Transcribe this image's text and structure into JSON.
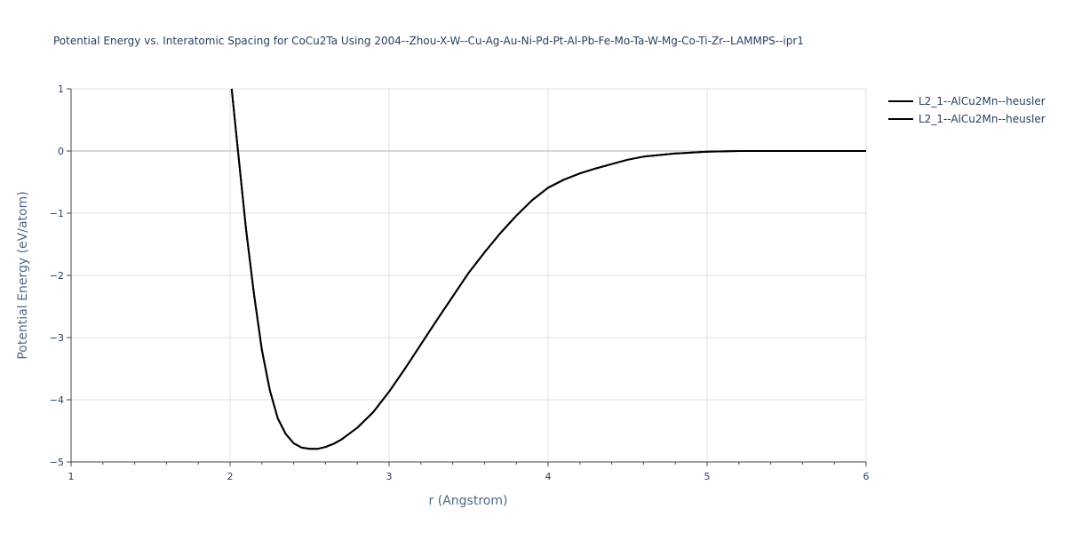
{
  "chart_data": {
    "type": "line",
    "title": "Potential Energy vs. Interatomic Spacing for CoCu2Ta Using 2004--Zhou-X-W--Cu-Ag-Au-Ni-Pd-Pt-Al-Pb-Fe-Mo-Ta-W-Mg-Co-Ti-Zr--LAMMPS--ipr1",
    "xlabel": "r (Angstrom)",
    "ylabel": "Potential Energy (eV/atom)",
    "xlim": [
      1,
      6
    ],
    "ylim": [
      -5,
      1
    ],
    "x_ticks": [
      1,
      2,
      3,
      4,
      5,
      6
    ],
    "y_ticks": [
      1,
      0,
      -1,
      -2,
      -3,
      -4,
      -5
    ],
    "x_tick_labels": [
      "1",
      "2",
      "3",
      "4",
      "5",
      "6"
    ],
    "y_tick_labels": [
      "1",
      "0",
      "−1",
      "−2",
      "−3",
      "−4",
      "−5"
    ],
    "grid": true,
    "legend_position": "top-right",
    "series": [
      {
        "name": "L2_1--AlCu2Mn--heusler",
        "color": "#000000",
        "x": [
          2.01,
          2.05,
          2.1,
          2.15,
          2.2,
          2.25,
          2.3,
          2.35,
          2.4,
          2.45,
          2.5,
          2.55,
          2.6,
          2.65,
          2.7,
          2.8,
          2.9,
          3.0,
          3.1,
          3.2,
          3.3,
          3.4,
          3.5,
          3.6,
          3.7,
          3.8,
          3.9,
          4.0,
          4.1,
          4.2,
          4.3,
          4.4,
          4.5,
          4.6,
          4.8,
          5.0,
          5.2,
          5.5,
          6.0
        ],
        "y": [
          1.0,
          0.0,
          -1.25,
          -2.3,
          -3.2,
          -3.85,
          -4.3,
          -4.55,
          -4.7,
          -4.77,
          -4.79,
          -4.79,
          -4.76,
          -4.71,
          -4.64,
          -4.45,
          -4.2,
          -3.87,
          -3.5,
          -3.11,
          -2.72,
          -2.34,
          -1.96,
          -1.63,
          -1.32,
          -1.04,
          -0.79,
          -0.59,
          -0.46,
          -0.36,
          -0.28,
          -0.21,
          -0.14,
          -0.09,
          -0.04,
          -0.01,
          0.0,
          0.0,
          0.0
        ]
      },
      {
        "name": "L2_1--AlCu2Mn--heusler",
        "color": "#000000",
        "x": [
          2.01,
          2.05,
          2.1,
          2.15,
          2.2,
          2.25,
          2.3,
          2.35,
          2.4,
          2.45,
          2.5,
          2.55,
          2.6,
          2.65,
          2.7,
          2.8,
          2.9,
          3.0,
          3.1,
          3.2,
          3.3,
          3.4,
          3.5,
          3.6,
          3.7,
          3.8,
          3.9,
          4.0,
          4.1,
          4.2,
          4.3,
          4.4,
          4.5,
          4.6,
          4.8,
          5.0,
          5.2,
          5.5,
          6.0
        ],
        "y": [
          1.0,
          0.0,
          -1.25,
          -2.3,
          -3.2,
          -3.85,
          -4.3,
          -4.55,
          -4.7,
          -4.77,
          -4.79,
          -4.79,
          -4.76,
          -4.71,
          -4.64,
          -4.45,
          -4.2,
          -3.87,
          -3.5,
          -3.11,
          -2.72,
          -2.34,
          -1.96,
          -1.63,
          -1.32,
          -1.04,
          -0.79,
          -0.59,
          -0.46,
          -0.36,
          -0.28,
          -0.21,
          -0.14,
          -0.09,
          -0.04,
          -0.01,
          0.0,
          0.0,
          0.0
        ]
      }
    ]
  }
}
